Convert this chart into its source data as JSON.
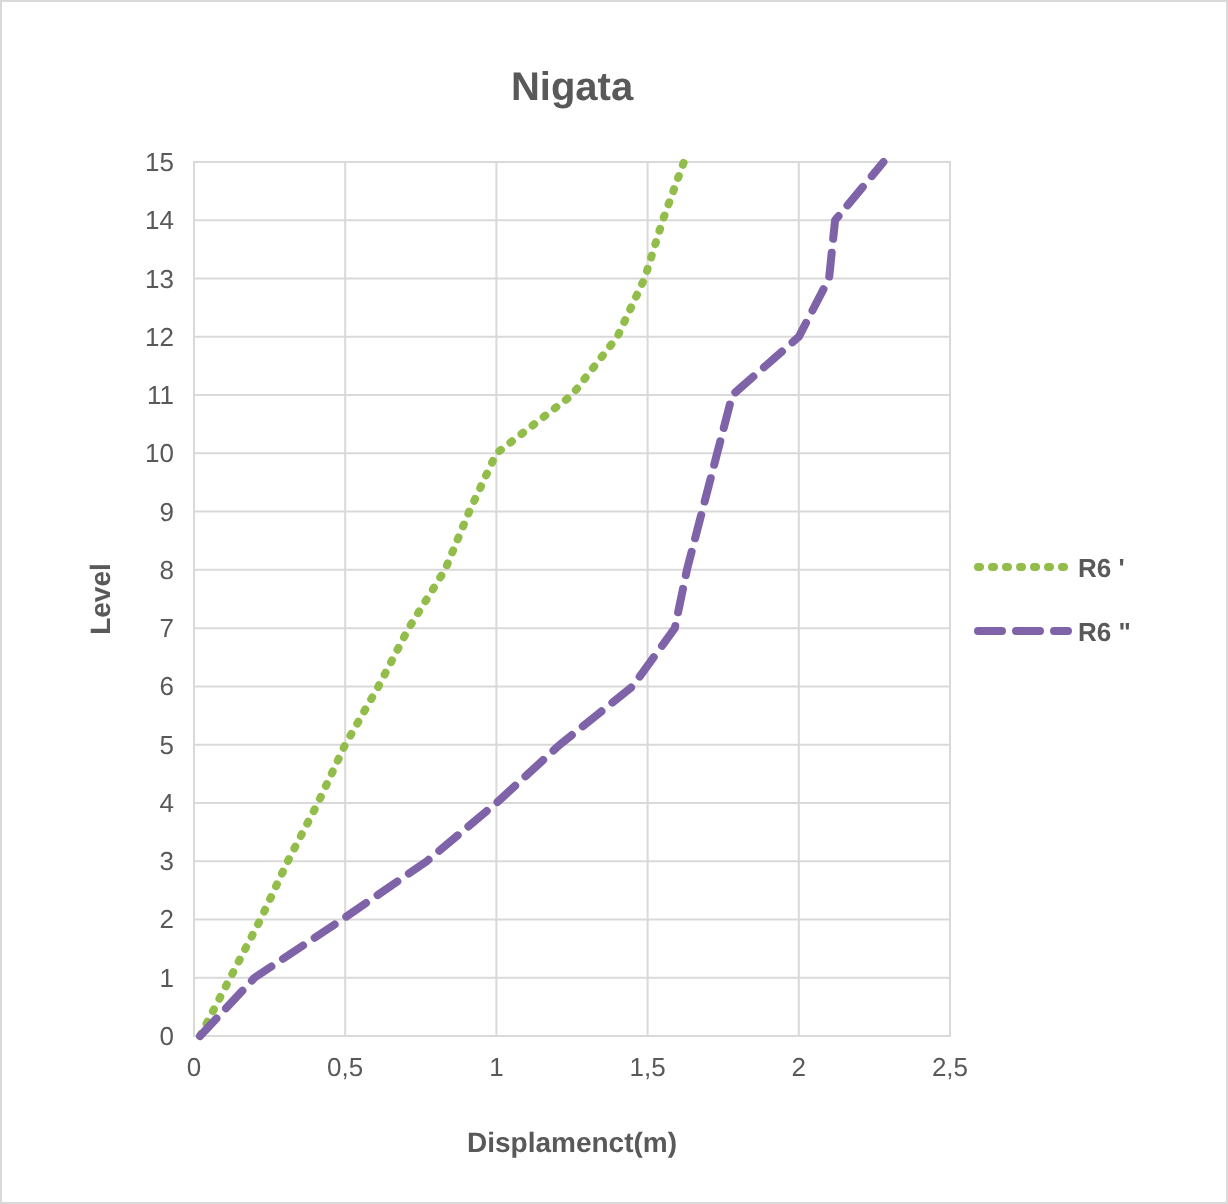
{
  "chart_data": {
    "type": "line",
    "title": "Nigata",
    "xlabel": "Displamenct(m)",
    "ylabel": "Level",
    "xlim": [
      0,
      2.5
    ],
    "xticks": [
      0,
      {
        "value": 0.5,
        "label": "0,5"
      },
      1,
      {
        "value": 1.5,
        "label": "1,5"
      },
      2,
      {
        "value": 2.5,
        "label": "2,5"
      }
    ],
    "ylim": [
      0,
      15
    ],
    "yticks": [
      0,
      1,
      2,
      3,
      4,
      5,
      6,
      7,
      8,
      9,
      10,
      11,
      12,
      13,
      14,
      15
    ],
    "grid": true,
    "legend": "right",
    "series": [
      {
        "name": "R6 '",
        "color": "#92bd4a",
        "line_style": "dotted",
        "x": [
          0.02,
          0.12,
          0.22,
          0.31,
          0.41,
          0.5,
          0.61,
          0.71,
          0.83,
          0.91,
          1.0,
          1.25,
          1.4,
          1.49,
          1.55,
          1.62
        ],
        "values": [
          0,
          1,
          2,
          3,
          4,
          5,
          6,
          7,
          8,
          9,
          10,
          11,
          12,
          13,
          14,
          15
        ]
      },
      {
        "name": "R6 \"",
        "color": "#7f63a8",
        "line_style": "dashed",
        "x": [
          0.02,
          0.2,
          0.49,
          0.77,
          1.0,
          1.21,
          1.45,
          1.59,
          1.63,
          1.68,
          1.73,
          1.78,
          2.0,
          2.1,
          2.12,
          2.28
        ],
        "values": [
          0,
          1,
          2,
          3,
          4,
          5,
          6,
          7,
          8,
          9,
          10,
          11,
          12,
          13,
          14,
          15
        ]
      }
    ]
  }
}
